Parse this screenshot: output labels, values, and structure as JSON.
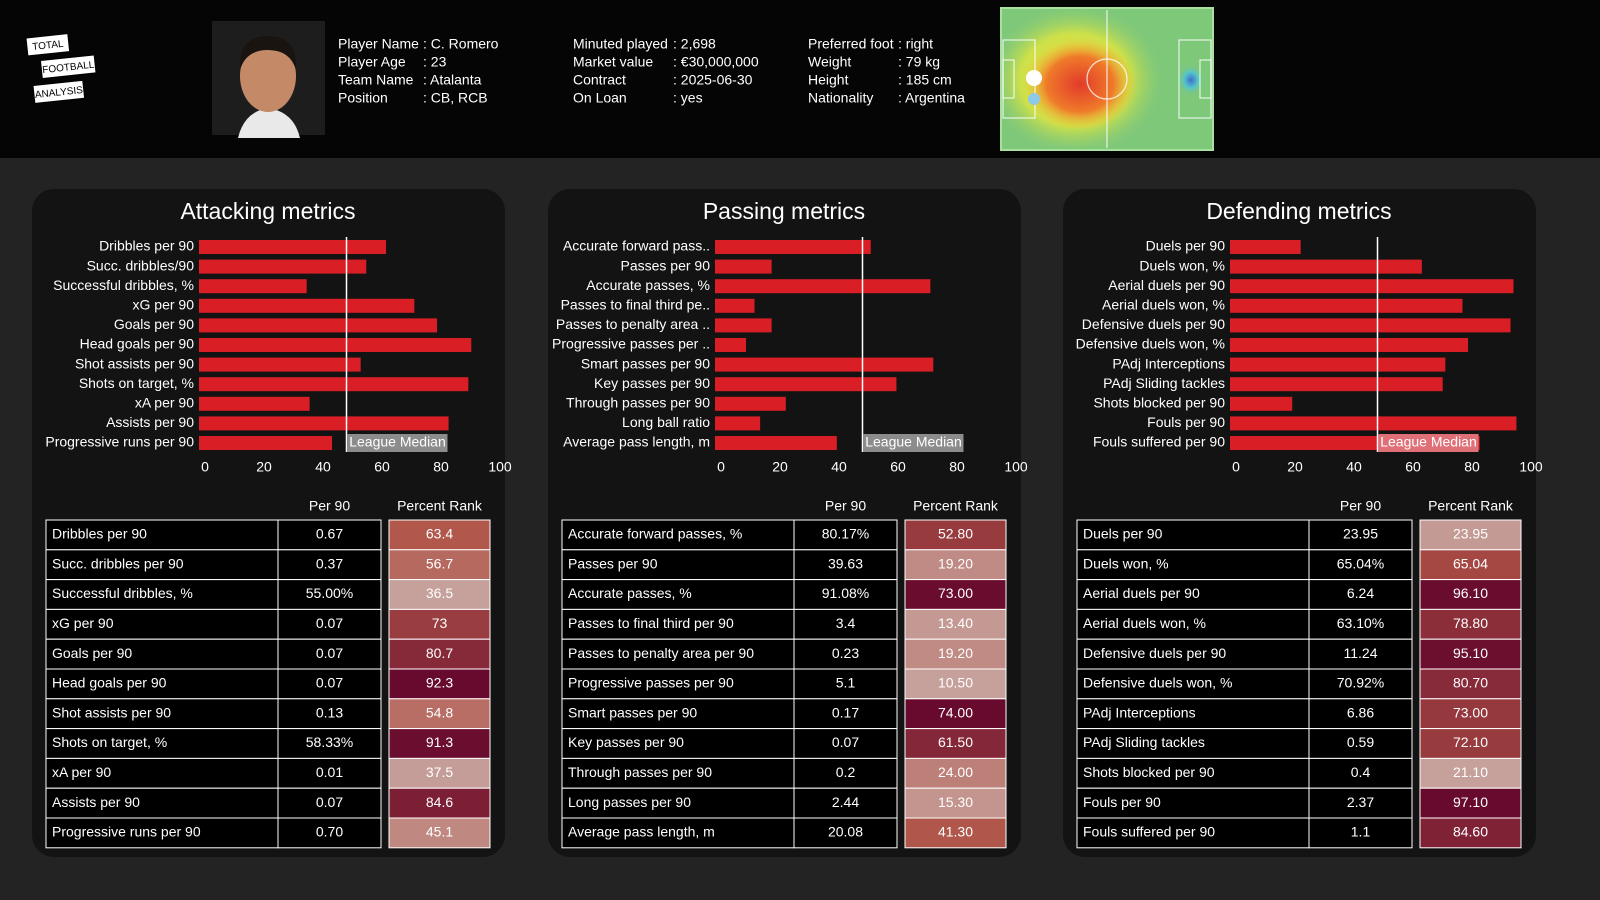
{
  "header": {
    "logo": [
      "TOTAL",
      "FOOTBALL",
      "ANALYSIS"
    ],
    "info": [
      [
        {
          "label": "Player Name",
          "value": ": C. Romero"
        },
        {
          "label": "Player Age",
          "value": ": 23"
        },
        {
          "label": "Team Name",
          "value": ": Atalanta"
        },
        {
          "label": "Position",
          "value": ": CB, RCB"
        }
      ],
      [
        {
          "label": "Minuted played",
          "value": ": 2,698"
        },
        {
          "label": "Market value",
          "value": ": €30,000,000"
        },
        {
          "label": "Contract",
          "value": ": 2025-06-30"
        },
        {
          "label": "On Loan",
          "value": ": yes"
        }
      ],
      [
        {
          "label": "Preferred foot",
          "value": ": right"
        },
        {
          "label": "Weight",
          "value": ": 79 kg"
        },
        {
          "label": "Height",
          "value": ": 185 cm"
        },
        {
          "label": "Nationality",
          "value": ": Argentina"
        }
      ]
    ]
  },
  "chart_data": [
    {
      "type": "barh",
      "title": "Attacking metrics",
      "color": "#d91e26",
      "categories": [
        "Dribbles per 90",
        "Succ. dribbles/90",
        "Successful dribbles, %",
        "xG per 90",
        "Goals per 90",
        "Head goals per 90",
        "Shot assists per 90",
        "Shots on target, %",
        "xA per 90",
        "Assists per 90",
        "Progressive runs per 90"
      ],
      "values": [
        63.4,
        56.7,
        36.5,
        73,
        80.7,
        92.3,
        54.8,
        91.3,
        37.5,
        84.6,
        45.1
      ],
      "xlim": [
        0,
        100
      ],
      "xticks": [
        0,
        20,
        40,
        60,
        80,
        100
      ],
      "median": 50,
      "median_label": "League Median",
      "median_label_color": "#8c8c8c"
    },
    {
      "type": "barh",
      "title": "Passing metrics",
      "color": "#d91e26",
      "categories": [
        "Accurate forward pass..",
        "Passes per 90",
        "Accurate passes, %",
        "Passes to final third pe..",
        "Passes to penalty area ..",
        "Progressive passes per ..",
        "Smart passes per 90",
        "Key passes per 90",
        "Through passes per 90",
        "Long ball ratio",
        "Average pass length, m"
      ],
      "values": [
        52.8,
        19.2,
        73,
        13.4,
        19.2,
        10.5,
        74,
        61.5,
        24,
        15.3,
        41.3
      ],
      "xlim": [
        0,
        100
      ],
      "xticks": [
        0,
        20,
        40,
        60,
        80,
        100
      ],
      "median": 50,
      "median_label": "League Median",
      "median_label_color": "#8c8c8c"
    },
    {
      "type": "barh",
      "title": "Defending metrics",
      "color": "#d91e26",
      "categories": [
        "Duels per 90",
        "Duels won, %",
        "Aerial duels per 90",
        "Aerial duels won, %",
        "Defensive duels per 90",
        "Defensive duels won, %",
        "PAdj Interceptions",
        "PAdj Sliding tackles",
        "Shots blocked per 90",
        "Fouls per 90",
        "Fouls suffered per 90"
      ],
      "values": [
        23.95,
        65.04,
        96.1,
        78.8,
        95.1,
        80.7,
        73,
        72.1,
        21.1,
        97.1,
        84.6
      ],
      "xlim": [
        0,
        100
      ],
      "xticks": [
        0,
        20,
        40,
        60,
        80,
        100
      ],
      "median": 50,
      "median_label": "League Median",
      "median_label_color": "#e07078"
    }
  ],
  "tables": [
    {
      "columns": [
        "Per 90",
        "Percent Rank"
      ],
      "rows": [
        [
          "Dribbles per 90",
          "0.67",
          "63.4"
        ],
        [
          "Succ. dribbles per 90",
          "0.37",
          "56.7"
        ],
        [
          "Successful dribbles, %",
          "55.00%",
          "36.5"
        ],
        [
          "xG per 90",
          "0.07",
          "73"
        ],
        [
          "Goals per 90",
          "0.07",
          "80.7"
        ],
        [
          "Head goals per 90",
          "0.07",
          "92.3"
        ],
        [
          "Shot assists per 90",
          "0.13",
          "54.8"
        ],
        [
          "Shots on target, %",
          "58.33%",
          "91.3"
        ],
        [
          "xA per 90",
          "0.01",
          "37.5"
        ],
        [
          "Assists per 90",
          "0.07",
          "84.6"
        ],
        [
          "Progressive runs per 90",
          "0.70",
          "45.1"
        ]
      ]
    },
    {
      "columns": [
        "Per 90",
        "Percent Rank"
      ],
      "rows": [
        [
          "Accurate forward passes, %",
          "80.17%",
          "52.80"
        ],
        [
          "Passes per 90",
          "39.63",
          "19.20"
        ],
        [
          "Accurate passes, %",
          "91.08%",
          "73.00"
        ],
        [
          "Passes to final third per 90",
          "3.4",
          "13.40"
        ],
        [
          "Passes to penalty area per 90",
          "0.23",
          "19.20"
        ],
        [
          "Progressive passes per 90",
          "5.1",
          "10.50"
        ],
        [
          "Smart passes per 90",
          "0.17",
          "74.00"
        ],
        [
          "Key passes per 90",
          "0.07",
          "61.50"
        ],
        [
          "Through passes per 90",
          "0.2",
          "24.00"
        ],
        [
          "Long passes per 90",
          "2.44",
          "15.30"
        ],
        [
          "Average pass length, m",
          "20.08",
          "41.30"
        ]
      ]
    },
    {
      "columns": [
        "Per 90",
        "Percent Rank"
      ],
      "rows": [
        [
          "Duels per 90",
          "23.95",
          "23.95"
        ],
        [
          "Duels won, %",
          "65.04%",
          "65.04"
        ],
        [
          "Aerial duels per 90",
          "6.24",
          "96.10"
        ],
        [
          "Aerial duels won, %",
          "63.10%",
          "78.80"
        ],
        [
          "Defensive duels per 90",
          "11.24",
          "95.10"
        ],
        [
          "Defensive duels won, %",
          "70.92%",
          "80.70"
        ],
        [
          "PAdj Interceptions",
          "6.86",
          "73.00"
        ],
        [
          "PAdj Sliding tackles",
          "0.59",
          "72.10"
        ],
        [
          "Shots blocked per 90",
          "0.4",
          "21.10"
        ],
        [
          "Fouls per 90",
          "2.37",
          "97.10"
        ],
        [
          "Fouls suffered per 90",
          "1.1",
          "84.60"
        ]
      ]
    }
  ]
}
